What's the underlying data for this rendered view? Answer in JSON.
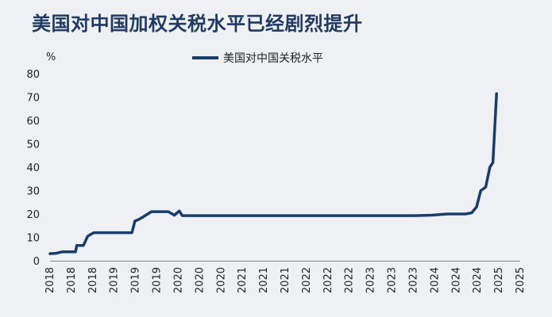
{
  "chart_data": {
    "type": "line",
    "title": "美国对中国加权关税水平已经剧烈提升",
    "ylabel": "%",
    "ylim": [
      0,
      80
    ],
    "yticks": [
      0,
      10,
      20,
      30,
      40,
      50,
      60,
      70,
      80
    ],
    "xlim": [
      2018.0,
      2025.75
    ],
    "xtick_labels": [
      "2018",
      "2018",
      "2018",
      "2019",
      "2019",
      "2019",
      "2020",
      "2020",
      "2020",
      "2021",
      "2021",
      "2021",
      "2022",
      "2022",
      "2022",
      "2023",
      "2023",
      "2023",
      "2024",
      "2024",
      "2024",
      "2025",
      "2025"
    ],
    "grid": false,
    "legend_position": "top-center",
    "line_color": "#173d6b",
    "series": [
      {
        "name": "美国对中国关税水平",
        "points": [
          [
            2018.0,
            3.0
          ],
          [
            2018.1,
            3.2
          ],
          [
            2018.2,
            3.8
          ],
          [
            2018.35,
            3.8
          ],
          [
            2018.42,
            3.8
          ],
          [
            2018.44,
            6.5
          ],
          [
            2018.55,
            6.5
          ],
          [
            2018.62,
            10.5
          ],
          [
            2018.72,
            12.0
          ],
          [
            2019.0,
            12.0
          ],
          [
            2019.35,
            12.0
          ],
          [
            2019.4,
            17.0
          ],
          [
            2019.45,
            17.5
          ],
          [
            2019.52,
            18.5
          ],
          [
            2019.67,
            21.0
          ],
          [
            2019.95,
            21.0
          ],
          [
            2020.05,
            19.5
          ],
          [
            2020.13,
            21.3
          ],
          [
            2020.18,
            19.3
          ],
          [
            2024.0,
            19.3
          ],
          [
            2024.3,
            19.5
          ],
          [
            2024.55,
            20.0
          ],
          [
            2024.85,
            20.0
          ],
          [
            2024.95,
            20.5
          ],
          [
            2025.03,
            23.0
          ],
          [
            2025.1,
            30.0
          ],
          [
            2025.18,
            31.5
          ],
          [
            2025.25,
            40.0
          ],
          [
            2025.3,
            42.0
          ],
          [
            2025.36,
            71.5
          ]
        ]
      }
    ]
  }
}
